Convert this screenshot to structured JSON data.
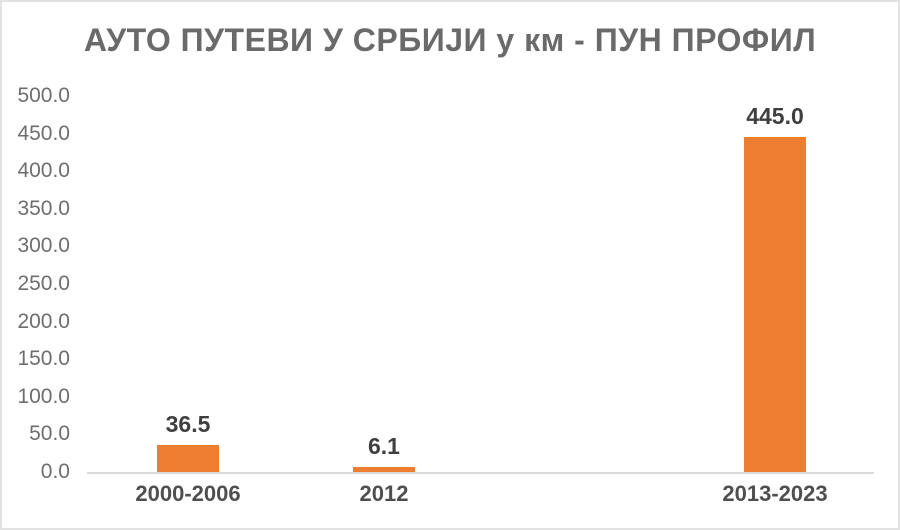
{
  "chart_data": {
    "type": "bar",
    "title": "АУТО ПУТЕВИ У СРБИЈИ у км - ПУН ПРОФИЛ",
    "categories": [
      "2000-2006",
      "2012",
      "2013-2023"
    ],
    "values": [
      36.5,
      6.1,
      445.0
    ],
    "value_labels": [
      "36.5",
      "6.1",
      "445.0"
    ],
    "xlabel": "",
    "ylabel": "",
    "ylim": [
      0,
      500
    ],
    "ytick_step": 50,
    "ytick_labels": [
      "0.0",
      "50.0",
      "100.0",
      "150.0",
      "200.0",
      "250.0",
      "300.0",
      "350.0",
      "400.0",
      "450.0",
      "500.0"
    ],
    "grid": false,
    "legend": false
  },
  "colors": {
    "bar": "#ED7D31",
    "title_text": "#6A6A6A",
    "ytick_text": "#6E6E6E",
    "xtick_text": "#4F4F4F",
    "value_label_text": "#3F3F3F",
    "axis_line": "#D9D9D9",
    "frame_border": "#E2E2E2",
    "background": "#FFFFFF"
  }
}
